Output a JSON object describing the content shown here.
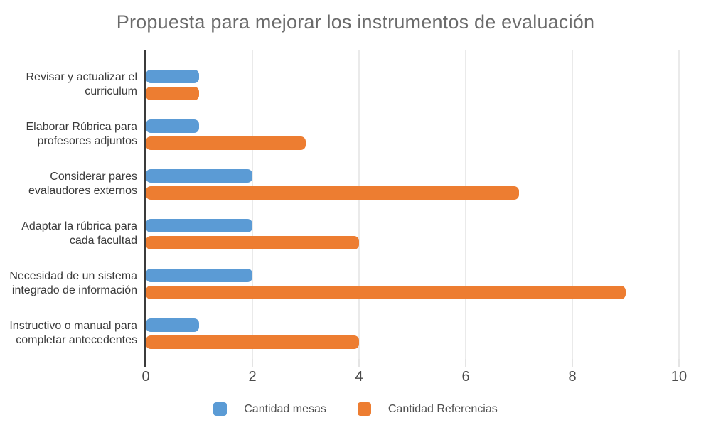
{
  "chart_data": {
    "type": "bar",
    "orientation": "horizontal",
    "title": "Propuesta para mejorar los instrumentos de evaluación",
    "categories": [
      "Revisar y actualizar el curriculum",
      "Elaborar Rúbrica para profesores adjuntos",
      "Considerar pares evalaudores externos",
      "Adaptar la rúbrica para cada facultad",
      "Necesidad de un sistema integrado de información",
      "Instructivo o manual para completar antecedentes"
    ],
    "series": [
      {
        "name": "Cantidad mesas",
        "color": "#5B9BD5",
        "values": [
          1,
          1,
          2,
          2,
          2,
          1
        ]
      },
      {
        "name": "Cantidad Referencias",
        "color": "#ED7D31",
        "values": [
          1,
          3,
          7,
          4,
          9,
          4
        ]
      }
    ],
    "xlim": [
      0,
      10
    ],
    "x_ticks": [
      0,
      2,
      4,
      6,
      8,
      10
    ],
    "grid": true,
    "legend_position": "bottom"
  },
  "colors": {
    "background": "#FFFFFF",
    "title_text": "#6B6B6B",
    "label_text": "#3A3A3A",
    "tick_text": "#4A4A4A",
    "gridline": "#D6D6D6",
    "axis_line": "#3B3B3B"
  }
}
